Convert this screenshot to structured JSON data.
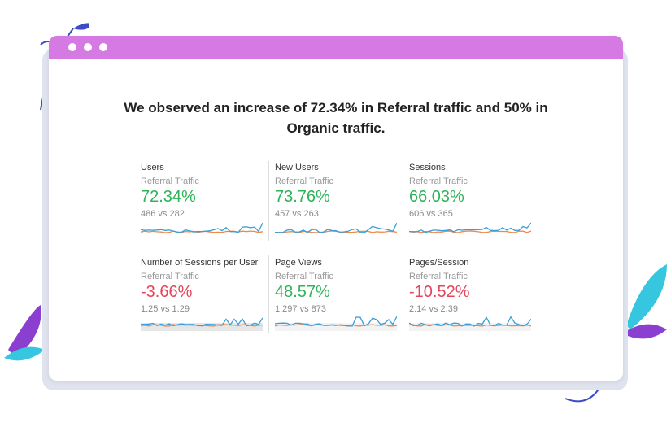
{
  "window": {
    "dots": 3,
    "accent": "#d57ae3"
  },
  "headline": "We observed an increase of 72.34% in Referral traffic and 50% in Organic traffic.",
  "colors": {
    "positive": "#2eb35a",
    "negative": "#e4455b",
    "series_current": "#3a9ed8",
    "series_previous": "#f0884a"
  },
  "metrics": [
    {
      "title": "Users",
      "segment": "Referral Traffic",
      "change": "72.34%",
      "compare": "486 vs 282",
      "trend": "positive"
    },
    {
      "title": "New Users",
      "segment": "Referral Traffic",
      "change": "73.76%",
      "compare": "457 vs 263",
      "trend": "positive"
    },
    {
      "title": "Sessions",
      "segment": "Referral Traffic",
      "change": "66.03%",
      "compare": "606 vs 365",
      "trend": "positive"
    },
    {
      "title": "Number of Sessions per User",
      "segment": "Referral Traffic",
      "change": "-3.66%",
      "compare": "1.25 vs 1.29",
      "trend": "negative"
    },
    {
      "title": "Page Views",
      "segment": "Referral Traffic",
      "change": "48.57%",
      "compare": "1,297 vs 873",
      "trend": "positive"
    },
    {
      "title": "Pages/Session",
      "segment": "Referral Traffic",
      "change": "-10.52%",
      "compare": "2.14 vs 2.39",
      "trend": "negative"
    }
  ]
}
